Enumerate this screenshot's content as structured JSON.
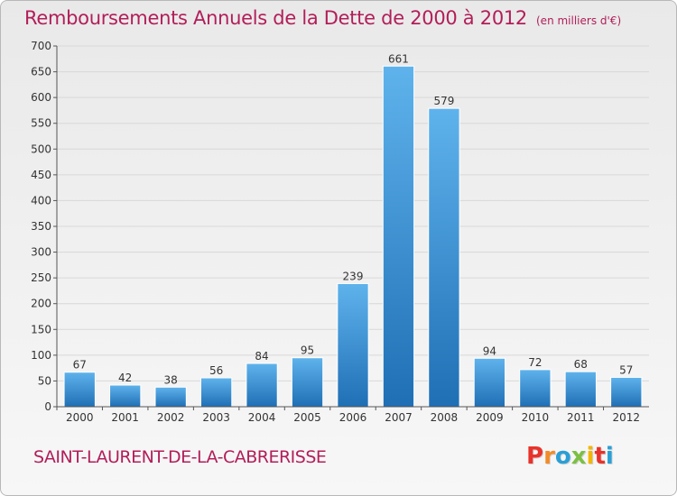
{
  "chart_title": "Remboursements Annuels de la Dette de 2000 à 2012",
  "chart_subtitle": "(en milliers d'€)",
  "place_name": "SAINT-LAURENT-DE-LA-CABRERISSE",
  "brand": {
    "letters": [
      "P",
      "r",
      "o",
      "x",
      "i",
      "t",
      "i"
    ],
    "colors": [
      "#e8332a",
      "#f28c28",
      "#2a9fd6",
      "#7bc043",
      "#f2b705",
      "#e8332a",
      "#2a9fd6"
    ]
  },
  "colors": {
    "title": "#b21e59",
    "bar_top": "#5fb3ec",
    "bar_bottom": "#1f6fb5",
    "grid": "#d8d8d8",
    "axis": "#555555"
  },
  "chart_data": {
    "type": "bar",
    "categories": [
      "2000",
      "2001",
      "2002",
      "2003",
      "2004",
      "2005",
      "2006",
      "2007",
      "2008",
      "2009",
      "2010",
      "2011",
      "2012"
    ],
    "values": [
      67,
      42,
      38,
      56,
      84,
      95,
      239,
      661,
      579,
      94,
      72,
      68,
      57
    ],
    "ylim": [
      0,
      700
    ],
    "yticks": [
      0,
      50,
      100,
      150,
      200,
      250,
      300,
      350,
      400,
      450,
      500,
      550,
      600,
      650,
      700
    ],
    "grid": true,
    "data_labels": true
  }
}
